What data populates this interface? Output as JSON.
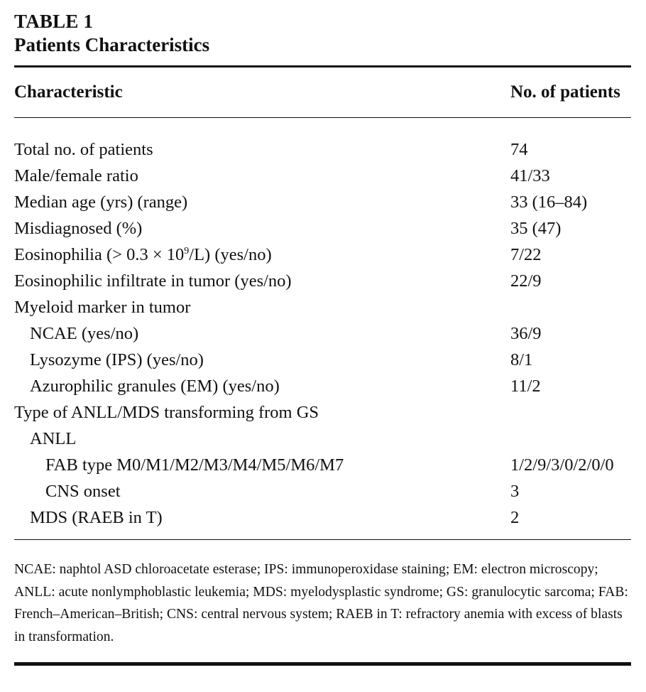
{
  "table": {
    "label": "TABLE 1",
    "title": "Patients Characteristics",
    "headers": {
      "characteristic": "Characteristic",
      "count": "No. of patients"
    },
    "rows": [
      {
        "label": "Total no. of patients",
        "value": "74",
        "indent": 0
      },
      {
        "label": "Male/female ratio",
        "value": "41/33",
        "indent": 0
      },
      {
        "label": "Median age (yrs) (range)",
        "value": "33 (16–84)",
        "indent": 0
      },
      {
        "label": "Misdiagnosed (%)",
        "value": "35 (47)",
        "indent": 0
      },
      {
        "label": "Eosinophilia (> 0.3 × 10",
        "label_sup": "9",
        "label_tail": "/L) (yes/no)",
        "value": "7/22",
        "indent": 0
      },
      {
        "label": "Eosinophilic infiltrate in tumor (yes/no)",
        "value": "22/9",
        "indent": 0
      },
      {
        "label": "Myeloid marker in tumor",
        "value": "",
        "indent": 0
      },
      {
        "label": "NCAE (yes/no)",
        "value": "36/9",
        "indent": 1
      },
      {
        "label": "Lysozyme (IPS) (yes/no)",
        "value": "8/1",
        "indent": 1
      },
      {
        "label": "Azurophilic granules (EM) (yes/no)",
        "value": "11/2",
        "indent": 1
      },
      {
        "label": "Type of ANLL/MDS transforming from GS",
        "value": "",
        "indent": 0
      },
      {
        "label": "ANLL",
        "value": "",
        "indent": 1
      },
      {
        "label": "FAB type M0/M1/M2/M3/M4/M5/M6/M7",
        "value": "1/2/9/3/0/2/0/0",
        "indent": 2
      },
      {
        "label": "CNS onset",
        "value": "3",
        "indent": 2
      },
      {
        "label": "MDS (RAEB in T)",
        "value": "2",
        "indent": 1
      }
    ],
    "footnote": "NCAE: naphtol ASD chloroacetate esterase; IPS: immunoperoxidase staining; EM: electron microscopy; ANLL: acute nonlymphoblastic leukemia; MDS: myelodysplastic syndrome; GS: granulocytic sarcoma; FAB: French–American–British; CNS: central nervous system; RAEB in T: refractory anemia with excess of blasts in transformation."
  }
}
